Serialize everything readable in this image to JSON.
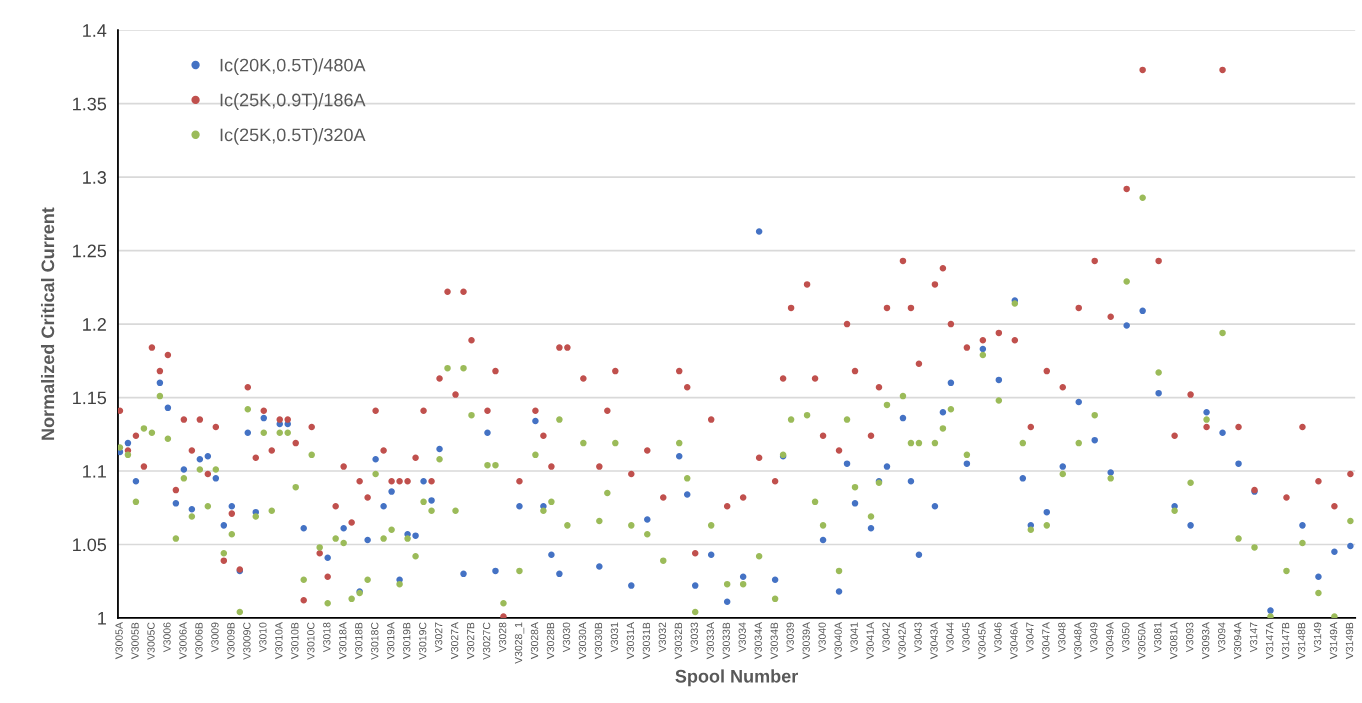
{
  "chart_data": {
    "type": "scatter",
    "xlabel": "Spool Number",
    "ylabel": "Normalized Critical Current",
    "categories": [
      "V3005A",
      null,
      "V3005B",
      null,
      "V3005C",
      null,
      "V3006",
      null,
      "V3006A",
      null,
      "V3006B",
      null,
      "V3009",
      null,
      "V3009B",
      null,
      "V3009C",
      null,
      "V3010",
      null,
      "V3010A",
      null,
      "V3010B",
      null,
      "V3010C",
      null,
      "V3018",
      null,
      "V3018A",
      null,
      "V3018B",
      null,
      "V3018C",
      null,
      "V3019A",
      null,
      "V3019B",
      null,
      "V3019C",
      null,
      "V3027",
      null,
      "V3027A",
      null,
      "V3027B",
      null,
      "V3027C",
      null,
      "V3028",
      null,
      "V3028_1",
      null,
      "V3028A",
      null,
      "V3028B",
      null,
      "V3030",
      null,
      "V3030A",
      null,
      "V3030B",
      null,
      "V3031",
      null,
      "V3031A",
      null,
      "V3031B",
      null,
      "V3032",
      null,
      "V3032B",
      null,
      "V3033",
      null,
      "V3033A",
      null,
      "V3033B",
      null,
      "V3034",
      null,
      "V3034A",
      null,
      "V3034B",
      null,
      "V3039",
      null,
      "V3039A",
      null,
      "V3040",
      null,
      "V3040A",
      null,
      "V3041",
      null,
      "V3041A",
      null,
      "V3042",
      null,
      "V3042A",
      null,
      "V3043",
      null,
      "V3043A",
      null,
      "V3044",
      null,
      "V3045",
      null,
      "V3045A",
      null,
      "V3046",
      null,
      "V3046A",
      null,
      "V3047",
      null,
      "V3047A",
      null,
      "V3048",
      null,
      "V3048A",
      null,
      "V3049",
      null,
      "V3049A",
      null,
      "V3050",
      null,
      "V3050A",
      null,
      "V3081",
      null,
      "V3081A",
      null,
      "V3093",
      null,
      "V3093A",
      null,
      "V3094",
      null,
      "V3094A",
      null,
      "V3147",
      null,
      "V3147A",
      null,
      "V3147B",
      null,
      "V3148B",
      null,
      "V3149",
      null,
      "V3149A",
      null,
      "V3149B"
    ],
    "series": [
      {
        "name": "Ic(20K,0.5T)/480A",
        "color": "#4472c4",
        "values": [
          1.113,
          1.119,
          1.093,
          null,
          null,
          1.16,
          1.143,
          1.078,
          1.101,
          1.074,
          1.108,
          1.11,
          1.095,
          1.063,
          1.076,
          1.032,
          1.126,
          1.072,
          1.136,
          null,
          1.132,
          1.132,
          null,
          1.061,
          null,
          null,
          1.041,
          null,
          1.061,
          null,
          1.018,
          1.053,
          1.108,
          1.076,
          1.086,
          1.026,
          1.057,
          1.056,
          1.093,
          1.08,
          1.115,
          null,
          null,
          1.03,
          null,
          null,
          1.126,
          1.032,
          null,
          null,
          1.076,
          null,
          1.134,
          1.076,
          1.043,
          1.03,
          null,
          null,
          null,
          null,
          1.035,
          null,
          null,
          null,
          1.022,
          null,
          1.067,
          null,
          null,
          null,
          1.11,
          1.084,
          1.022,
          null,
          1.043,
          null,
          1.011,
          null,
          1.028,
          null,
          1.263,
          null,
          1.026,
          1.11,
          null,
          null,
          null,
          null,
          1.053,
          null,
          1.018,
          1.105,
          1.078,
          null,
          1.061,
          1.093,
          1.103,
          null,
          1.136,
          1.093,
          1.043,
          null,
          1.076,
          1.14,
          1.16,
          null,
          1.105,
          null,
          1.183,
          null,
          1.162,
          null,
          1.216,
          1.095,
          1.063,
          null,
          1.072,
          null,
          1.103,
          null,
          1.147,
          null,
          1.121,
          null,
          1.099,
          null,
          1.199,
          null,
          1.209,
          null,
          1.153,
          null,
          1.076,
          null,
          1.063,
          null,
          1.14,
          null,
          1.126,
          null,
          1.105,
          null,
          1.086,
          null,
          1.005,
          null,
          null,
          null,
          1.063,
          null,
          1.028,
          null,
          1.045,
          null,
          1.049
        ]
      },
      {
        "name": "Ic(25K,0.9T)/186A",
        "color": "#c0504d",
        "values": [
          1.141,
          1.114,
          1.124,
          1.103,
          1.184,
          1.168,
          1.179,
          1.087,
          1.135,
          1.114,
          1.135,
          1.098,
          1.13,
          1.039,
          1.071,
          1.033,
          1.157,
          1.109,
          1.141,
          1.114,
          1.135,
          1.135,
          1.119,
          1.012,
          1.13,
          1.044,
          1.028,
          1.076,
          1.103,
          1.065,
          1.093,
          1.082,
          1.141,
          1.114,
          1.093,
          1.093,
          1.093,
          1.109,
          1.141,
          1.093,
          1.163,
          1.222,
          1.152,
          1.222,
          1.189,
          null,
          1.141,
          1.168,
          1.001,
          null,
          1.093,
          null,
          1.141,
          1.124,
          1.103,
          1.184,
          1.184,
          null,
          1.163,
          null,
          1.103,
          1.141,
          1.168,
          null,
          1.098,
          null,
          1.114,
          null,
          1.082,
          null,
          1.168,
          1.157,
          1.044,
          null,
          1.135,
          null,
          1.076,
          null,
          1.082,
          null,
          1.109,
          null,
          1.093,
          1.163,
          1.211,
          null,
          1.227,
          1.163,
          1.124,
          null,
          1.114,
          1.2,
          1.168,
          null,
          1.124,
          1.157,
          1.211,
          null,
          1.243,
          1.211,
          1.173,
          null,
          1.227,
          1.238,
          1.2,
          null,
          1.184,
          null,
          1.189,
          null,
          1.194,
          null,
          1.189,
          null,
          1.13,
          null,
          1.168,
          null,
          1.157,
          null,
          1.211,
          null,
          1.243,
          null,
          1.205,
          null,
          1.292,
          null,
          1.373,
          null,
          1.243,
          null,
          1.124,
          null,
          1.152,
          null,
          1.13,
          null,
          1.373,
          null,
          1.13,
          null,
          1.087,
          null,
          null,
          null,
          1.082,
          null,
          1.13,
          null,
          1.093,
          null,
          1.076,
          null,
          1.098
        ]
      },
      {
        "name": "Ic(25K,0.5T)/320A",
        "color": "#9bbb59",
        "values": [
          1.116,
          1.111,
          1.079,
          1.129,
          1.126,
          1.151,
          1.122,
          1.054,
          1.095,
          1.069,
          1.101,
          1.076,
          1.101,
          1.044,
          1.057,
          1.004,
          1.142,
          1.069,
          1.126,
          1.073,
          1.126,
          1.126,
          1.089,
          1.026,
          1.111,
          1.048,
          1.01,
          1.054,
          1.051,
          1.013,
          1.017,
          1.026,
          1.098,
          1.054,
          1.06,
          1.023,
          1.054,
          1.042,
          1.079,
          1.073,
          1.108,
          1.17,
          1.073,
          1.17,
          1.138,
          null,
          1.104,
          1.104,
          1.01,
          null,
          1.032,
          null,
          1.111,
          1.073,
          1.079,
          1.135,
          1.063,
          null,
          1.119,
          null,
          1.066,
          1.085,
          1.119,
          null,
          1.063,
          null,
          1.057,
          null,
          1.039,
          null,
          1.119,
          1.095,
          1.004,
          null,
          1.063,
          null,
          1.023,
          null,
          1.023,
          null,
          1.042,
          null,
          1.013,
          1.111,
          1.135,
          null,
          1.138,
          1.079,
          1.063,
          null,
          1.032,
          1.135,
          1.089,
          null,
          1.069,
          1.092,
          1.145,
          null,
          1.151,
          1.119,
          1.119,
          null,
          1.119,
          1.129,
          1.142,
          null,
          1.111,
          null,
          1.179,
          null,
          1.148,
          null,
          1.214,
          1.119,
          1.06,
          null,
          1.063,
          null,
          1.098,
          null,
          1.119,
          null,
          1.138,
          null,
          1.095,
          null,
          1.229,
          null,
          1.286,
          null,
          1.167,
          null,
          1.073,
          null,
          1.092,
          null,
          1.135,
          null,
          1.194,
          null,
          1.054,
          null,
          1.048,
          null,
          1.001,
          null,
          1.032,
          null,
          1.051,
          null,
          1.017,
          null,
          1.001,
          null,
          1.066
        ]
      }
    ],
    "ylim": [
      1,
      1.4
    ],
    "yticks": [
      1,
      1.05,
      1.1,
      1.15,
      1.2,
      1.25,
      1.3,
      1.35,
      1.4
    ],
    "grid": "y",
    "legend": "top left",
    "marker": "circle"
  }
}
